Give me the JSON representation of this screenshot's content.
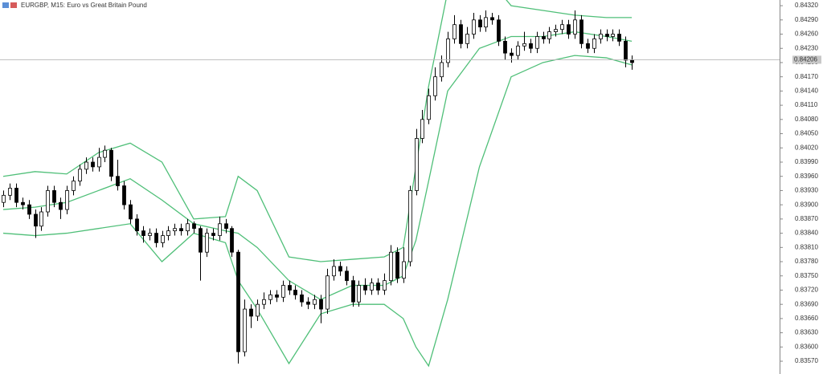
{
  "chart_data": {
    "type": "candlestick",
    "title": "EURGBP, M15:  Euro vs Great Britain Pound",
    "ylim": [
      0.83543,
      0.84332
    ],
    "yticks": [
      {
        "value": 0.8432,
        "label": "0.84320"
      },
      {
        "value": 0.8429,
        "label": "0.84290"
      },
      {
        "value": 0.8426,
        "label": "0.84260"
      },
      {
        "value": 0.8423,
        "label": "0.84230"
      },
      {
        "value": 0.842,
        "label": "0.84200"
      },
      {
        "value": 0.8417,
        "label": "0.84170"
      },
      {
        "value": 0.8414,
        "label": "0.84140"
      },
      {
        "value": 0.8411,
        "label": "0.84110"
      },
      {
        "value": 0.8408,
        "label": "0.84080"
      },
      {
        "value": 0.8405,
        "label": "0.84050"
      },
      {
        "value": 0.8402,
        "label": "0.84020"
      },
      {
        "value": 0.8399,
        "label": "0.83990"
      },
      {
        "value": 0.8396,
        "label": "0.83960"
      },
      {
        "value": 0.8393,
        "label": "0.83930"
      },
      {
        "value": 0.839,
        "label": "0.83900"
      },
      {
        "value": 0.8387,
        "label": "0.83870"
      },
      {
        "value": 0.8384,
        "label": "0.83840"
      },
      {
        "value": 0.8381,
        "label": "0.83810"
      },
      {
        "value": 0.8378,
        "label": "0.83780"
      },
      {
        "value": 0.8375,
        "label": "0.83750"
      },
      {
        "value": 0.8372,
        "label": "0.83720"
      },
      {
        "value": 0.8369,
        "label": "0.83690"
      },
      {
        "value": 0.8366,
        "label": "0.83660"
      },
      {
        "value": 0.8363,
        "label": "0.83630"
      },
      {
        "value": 0.836,
        "label": "0.83600"
      },
      {
        "value": 0.8357,
        "label": "0.83570"
      }
    ],
    "price_line": {
      "value": 0.84206,
      "label": "0.84206"
    },
    "up_color": "#ffffff",
    "down_color": "#000000",
    "open": [
      0.83905,
      0.8392,
      0.83935,
      0.83905,
      0.839,
      0.8388,
      0.83855,
      0.83885,
      0.8393,
      0.83905,
      0.8389,
      0.8393,
      0.8395,
      0.83975,
      0.8399,
      0.8398,
      0.84,
      0.84015,
      0.8396,
      0.8394,
      0.839,
      0.8387,
      0.83845,
      0.83835,
      0.8384,
      0.8382,
      0.83835,
      0.83845,
      0.8385,
      0.83845,
      0.8386,
      0.8385,
      0.838,
      0.8384,
      0.83835,
      0.8386,
      0.8385,
      0.838,
      0.8359,
      0.8368,
      0.83665,
      0.8369,
      0.837,
      0.8371,
      0.83705,
      0.8373,
      0.8372,
      0.8371,
      0.83695,
      0.8369,
      0.837,
      0.8368,
      0.8375,
      0.8377,
      0.8376,
      0.8374,
      0.83695,
      0.8373,
      0.8372,
      0.83735,
      0.8372,
      0.8374,
      0.838,
      0.83745,
      0.8378,
      0.8393,
      0.8404,
      0.8408,
      0.8413,
      0.8417,
      0.842,
      0.8425,
      0.8428,
      0.8424,
      0.8426,
      0.8429,
      0.84275,
      0.84295,
      0.8429,
      0.84245,
      0.8422,
      0.84215,
      0.84235,
      0.8424,
      0.8423,
      0.84255,
      0.8425,
      0.84265,
      0.8427,
      0.8428,
      0.8426,
      0.8429,
      0.8424,
      0.8423,
      0.8425,
      0.8426,
      0.84255,
      0.8426,
      0.84245,
      0.84205
    ],
    "high": [
      0.8393,
      0.83945,
      0.83945,
      0.83915,
      0.8391,
      0.8389,
      0.83895,
      0.8394,
      0.8394,
      0.83915,
      0.8394,
      0.8396,
      0.83985,
      0.84,
      0.84,
      0.8402,
      0.84025,
      0.8402,
      0.83995,
      0.8395,
      0.8391,
      0.8388,
      0.83855,
      0.8385,
      0.8385,
      0.83845,
      0.83855,
      0.8386,
      0.8386,
      0.8387,
      0.83865,
      0.83855,
      0.8385,
      0.8385,
      0.83875,
      0.8387,
      0.83855,
      0.83805,
      0.837,
      0.8369,
      0.837,
      0.83715,
      0.8372,
      0.8372,
      0.8374,
      0.8374,
      0.8373,
      0.8372,
      0.83705,
      0.8371,
      0.8371,
      0.83765,
      0.83785,
      0.8378,
      0.8377,
      0.8375,
      0.8374,
      0.83745,
      0.83745,
      0.83745,
      0.83755,
      0.83815,
      0.8381,
      0.8381,
      0.8394,
      0.8406,
      0.841,
      0.84145,
      0.8419,
      0.84215,
      0.84265,
      0.843,
      0.8429,
      0.84275,
      0.84305,
      0.843,
      0.8431,
      0.84305,
      0.843,
      0.84255,
      0.8423,
      0.84245,
      0.84265,
      0.8425,
      0.84265,
      0.84265,
      0.84275,
      0.8428,
      0.8429,
      0.8429,
      0.8431,
      0.843,
      0.8425,
      0.8426,
      0.8427,
      0.8427,
      0.8427,
      0.8427,
      0.84255,
      0.84215
    ],
    "low": [
      0.83895,
      0.8391,
      0.83895,
      0.8389,
      0.8387,
      0.8383,
      0.83845,
      0.83875,
      0.83895,
      0.8387,
      0.8388,
      0.8392,
      0.8394,
      0.83965,
      0.8397,
      0.8397,
      0.8399,
      0.8395,
      0.8393,
      0.8389,
      0.8386,
      0.83835,
      0.8382,
      0.83825,
      0.8381,
      0.8381,
      0.83825,
      0.83835,
      0.83835,
      0.83835,
      0.8384,
      0.8374,
      0.8379,
      0.83825,
      0.83825,
      0.8384,
      0.8379,
      0.83565,
      0.8358,
      0.8364,
      0.83655,
      0.8368,
      0.8369,
      0.83695,
      0.83695,
      0.8371,
      0.837,
      0.83685,
      0.8368,
      0.8368,
      0.8365,
      0.8367,
      0.8374,
      0.8375,
      0.8373,
      0.83685,
      0.83685,
      0.8371,
      0.8371,
      0.8371,
      0.8371,
      0.8373,
      0.83735,
      0.83735,
      0.8377,
      0.8392,
      0.8403,
      0.8407,
      0.8412,
      0.8416,
      0.8419,
      0.8424,
      0.8423,
      0.8423,
      0.8425,
      0.84265,
      0.84265,
      0.8428,
      0.84235,
      0.84205,
      0.842,
      0.84205,
      0.84225,
      0.8422,
      0.8422,
      0.8424,
      0.8424,
      0.84255,
      0.8426,
      0.8425,
      0.8425,
      0.8423,
      0.8422,
      0.8422,
      0.8424,
      0.84245,
      0.84245,
      0.84235,
      0.8419,
      0.84185
    ],
    "close": [
      0.8392,
      0.83935,
      0.83905,
      0.839,
      0.8388,
      0.83855,
      0.83885,
      0.8393,
      0.83905,
      0.8389,
      0.8393,
      0.8395,
      0.83975,
      0.8399,
      0.8398,
      0.84,
      0.84015,
      0.8396,
      0.8394,
      0.839,
      0.8387,
      0.83845,
      0.83835,
      0.8384,
      0.8382,
      0.83835,
      0.83845,
      0.8385,
      0.83845,
      0.8386,
      0.8385,
      0.838,
      0.8384,
      0.83835,
      0.8386,
      0.8385,
      0.838,
      0.8359,
      0.8368,
      0.83665,
      0.8369,
      0.837,
      0.8371,
      0.83705,
      0.8373,
      0.8372,
      0.8371,
      0.83695,
      0.8369,
      0.837,
      0.8368,
      0.8375,
      0.8377,
      0.8376,
      0.8374,
      0.83695,
      0.8373,
      0.8372,
      0.83735,
      0.8372,
      0.8374,
      0.838,
      0.83745,
      0.8378,
      0.8393,
      0.8404,
      0.8408,
      0.8413,
      0.8417,
      0.842,
      0.8425,
      0.8428,
      0.8424,
      0.8426,
      0.8429,
      0.84275,
      0.84295,
      0.8429,
      0.84245,
      0.8422,
      0.84215,
      0.84235,
      0.8424,
      0.8423,
      0.84255,
      0.8425,
      0.84265,
      0.8427,
      0.8428,
      0.8426,
      0.8429,
      0.8424,
      0.8423,
      0.8425,
      0.8426,
      0.84255,
      0.8426,
      0.84245,
      0.84205,
      0.842
    ],
    "bands": {
      "x": [
        0,
        5,
        10,
        15,
        20,
        25,
        30,
        35,
        37,
        40,
        45,
        50,
        55,
        60,
        63,
        65,
        67,
        70,
        75,
        80,
        85,
        90,
        95,
        99
      ],
      "series": [
        {
          "color": "#4fbf78",
          "values": [
            0.8396,
            0.8397,
            0.83965,
            0.8401,
            0.8403,
            0.8399,
            0.8387,
            0.83875,
            0.8396,
            0.8393,
            0.8379,
            0.8378,
            0.83785,
            0.8379,
            0.8381,
            0.8398,
            0.8415,
            0.8435,
            0.844,
            0.8432,
            0.8431,
            0.843,
            0.84295,
            0.84295
          ]
        },
        {
          "color": "#4fbf78",
          "values": [
            0.8389,
            0.83895,
            0.83905,
            0.8393,
            0.83955,
            0.8391,
            0.8386,
            0.83845,
            0.8384,
            0.8381,
            0.8374,
            0.837,
            0.8373,
            0.8373,
            0.8375,
            0.83825,
            0.8395,
            0.8414,
            0.8423,
            0.84255,
            0.84255,
            0.84265,
            0.84255,
            0.84245
          ]
        },
        {
          "color": "#4fbf78",
          "values": [
            0.8384,
            0.83835,
            0.8384,
            0.8385,
            0.8386,
            0.8378,
            0.8384,
            0.8382,
            0.8374,
            0.8368,
            0.83565,
            0.8367,
            0.8369,
            0.8369,
            0.8366,
            0.836,
            0.8356,
            0.837,
            0.8398,
            0.8417,
            0.842,
            0.84215,
            0.8421,
            0.84195
          ]
        }
      ]
    }
  }
}
